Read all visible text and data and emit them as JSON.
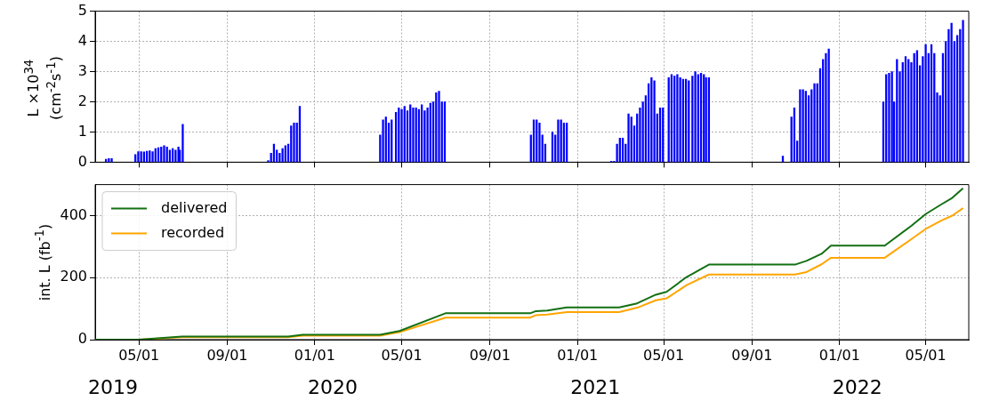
{
  "chart_data": [
    {
      "type": "bar",
      "ylabel": "L ×10$^{34}$\n(cm$^{-2}$s$^{-1}$)",
      "color": "#0000ff",
      "xlim": [
        "2019-03-01",
        "2022-06-30"
      ],
      "ylim": [
        0,
        5
      ],
      "yticks": [
        0,
        1,
        2,
        3,
        4,
        5
      ],
      "grid": true,
      "tick_labels": "y",
      "xticks": [
        {
          "value": "2019-05-01",
          "label": null
        },
        {
          "value": "2019-09-01",
          "label": null
        },
        {
          "value": "2020-01-01",
          "label": null
        },
        {
          "value": "2020-05-01",
          "label": null
        },
        {
          "value": "2020-09-01",
          "label": null
        },
        {
          "value": "2021-01-01",
          "label": null
        },
        {
          "value": "2021-05-01",
          "label": null
        },
        {
          "value": "2021-09-01",
          "label": null
        },
        {
          "value": "2022-01-01",
          "label": null
        },
        {
          "value": "2022-05-01",
          "label": null
        }
      ],
      "x": [
        "2019-03-16",
        "2019-03-20",
        "2019-03-24",
        "2019-04-26",
        "2019-04-30",
        "2019-05-04",
        "2019-05-08",
        "2019-05-12",
        "2019-05-16",
        "2019-05-20",
        "2019-05-24",
        "2019-05-28",
        "2019-06-01",
        "2019-06-05",
        "2019-06-09",
        "2019-06-13",
        "2019-06-17",
        "2019-06-21",
        "2019-06-25",
        "2019-06-27",
        "2019-07-01",
        "2019-10-28",
        "2019-11-01",
        "2019-11-05",
        "2019-11-09",
        "2019-11-13",
        "2019-11-17",
        "2019-11-21",
        "2019-11-25",
        "2019-11-29",
        "2019-12-03",
        "2019-12-07",
        "2019-12-11",
        "2020-04-01",
        "2020-04-05",
        "2020-04-09",
        "2020-04-13",
        "2020-04-17",
        "2020-04-23",
        "2020-04-27",
        "2020-05-01",
        "2020-05-05",
        "2020-05-09",
        "2020-05-13",
        "2020-05-17",
        "2020-05-21",
        "2020-05-25",
        "2020-05-29",
        "2020-06-02",
        "2020-06-06",
        "2020-06-10",
        "2020-06-14",
        "2020-06-18",
        "2020-06-22",
        "2020-06-26",
        "2020-06-30",
        "2020-10-28",
        "2020-11-01",
        "2020-11-05",
        "2020-11-09",
        "2020-11-13",
        "2020-11-17",
        "2020-11-27",
        "2020-12-01",
        "2020-12-05",
        "2020-12-09",
        "2020-12-13",
        "2020-12-17",
        "2021-02-17",
        "2021-02-21",
        "2021-02-25",
        "2021-03-01",
        "2021-03-05",
        "2021-03-09",
        "2021-03-13",
        "2021-03-17",
        "2021-03-21",
        "2021-03-25",
        "2021-03-29",
        "2021-04-02",
        "2021-04-06",
        "2021-04-10",
        "2021-04-14",
        "2021-04-18",
        "2021-04-22",
        "2021-04-26",
        "2021-04-30",
        "2021-05-08",
        "2021-05-12",
        "2021-05-16",
        "2021-05-20",
        "2021-05-24",
        "2021-05-28",
        "2021-06-01",
        "2021-06-05",
        "2021-06-10",
        "2021-06-14",
        "2021-06-18",
        "2021-06-22",
        "2021-06-26",
        "2021-06-29",
        "2021-07-03",
        "2021-10-14",
        "2021-10-26",
        "2021-10-30",
        "2021-11-03",
        "2021-11-07",
        "2021-11-11",
        "2021-11-15",
        "2021-11-19",
        "2021-11-23",
        "2021-11-27",
        "2021-12-01",
        "2021-12-05",
        "2021-12-09",
        "2021-12-13",
        "2021-12-17",
        "2022-03-03",
        "2022-03-07",
        "2022-03-11",
        "2022-03-15",
        "2022-03-18",
        "2022-03-22",
        "2022-03-26",
        "2022-03-30",
        "2022-04-03",
        "2022-04-07",
        "2022-04-11",
        "2022-04-15",
        "2022-04-19",
        "2022-04-23",
        "2022-04-27",
        "2022-05-01",
        "2022-05-05",
        "2022-05-09",
        "2022-05-13",
        "2022-05-17",
        "2022-05-21",
        "2022-05-25",
        "2022-05-29",
        "2022-06-02",
        "2022-06-06",
        "2022-06-10",
        "2022-06-14",
        "2022-06-18",
        "2022-06-22"
      ],
      "values": [
        0.1,
        0.12,
        0.12,
        0.25,
        0.35,
        0.35,
        0.34,
        0.36,
        0.38,
        0.35,
        0.45,
        0.48,
        0.5,
        0.55,
        0.5,
        0.4,
        0.45,
        0.4,
        0.5,
        0.4,
        1.25,
        0.05,
        0.3,
        0.6,
        0.4,
        0.3,
        0.45,
        0.55,
        0.6,
        1.2,
        1.3,
        1.3,
        1.85,
        0.9,
        1.4,
        1.5,
        1.3,
        1.4,
        1.65,
        1.8,
        1.75,
        1.85,
        1.7,
        1.9,
        1.8,
        1.8,
        1.75,
        1.9,
        1.7,
        1.8,
        1.95,
        2.0,
        2.3,
        2.35,
        2.0,
        2.0,
        0.9,
        1.4,
        1.4,
        1.3,
        0.9,
        0.6,
        1.0,
        0.9,
        1.4,
        1.4,
        1.3,
        1.3,
        0.03,
        0.03,
        0.6,
        0.8,
        0.8,
        0.6,
        1.6,
        1.5,
        1.2,
        1.6,
        1.8,
        2.0,
        2.2,
        2.6,
        2.8,
        2.7,
        1.6,
        1.8,
        1.8,
        2.8,
        2.9,
        2.85,
        2.9,
        2.8,
        2.75,
        2.75,
        2.7,
        2.85,
        3.0,
        2.9,
        2.95,
        2.9,
        2.8,
        2.8,
        0.2,
        1.5,
        1.8,
        0.7,
        2.4,
        2.4,
        2.35,
        2.2,
        2.4,
        2.6,
        2.6,
        3.1,
        3.4,
        3.6,
        3.75,
        2.0,
        2.9,
        2.95,
        3.0,
        2.0,
        3.4,
        3.0,
        3.3,
        3.5,
        3.4,
        3.3,
        3.6,
        3.7,
        3.2,
        3.5,
        3.9,
        3.6,
        3.9,
        3.6,
        2.3,
        2.2,
        3.6,
        4.0,
        4.4,
        4.6,
        4.0,
        4.2,
        4.4,
        4.7
      ]
    },
    {
      "type": "line",
      "ylabel": "int. L (fb$^{-1}$)",
      "xlim": [
        "2019-03-01",
        "2022-06-30"
      ],
      "ylim": [
        0,
        500
      ],
      "yticks": [
        0,
        200,
        400
      ],
      "grid": true,
      "legend": "top left",
      "xticks": [
        {
          "value": "2019-05-01",
          "label": "05/01"
        },
        {
          "value": "2019-09-01",
          "label": "09/01"
        },
        {
          "value": "2020-01-01",
          "label": "01/01"
        },
        {
          "value": "2020-05-01",
          "label": "05/01"
        },
        {
          "value": "2020-09-01",
          "label": "09/01"
        },
        {
          "value": "2021-01-01",
          "label": "01/01"
        },
        {
          "value": "2021-05-01",
          "label": "05/01"
        },
        {
          "value": "2021-09-01",
          "label": "09/01"
        },
        {
          "value": "2022-01-01",
          "label": "01/01"
        },
        {
          "value": "2022-05-01",
          "label": "05/01"
        }
      ],
      "annotations": [
        "2019",
        "2020",
        "2021",
        "2022"
      ],
      "x": [
        "2019-03-01",
        "2019-05-01",
        "2019-06-30",
        "2019-11-25",
        "2019-12-15",
        "2020-04-01",
        "2020-04-28",
        "2020-07-01",
        "2020-10-27",
        "2020-11-04",
        "2020-11-20",
        "2020-12-17",
        "2021-02-28",
        "2021-03-25",
        "2021-04-20",
        "2021-05-05",
        "2021-06-02",
        "2021-07-03",
        "2021-10-31",
        "2021-11-16",
        "2021-12-07",
        "2021-12-20",
        "2022-03-05",
        "2022-04-11",
        "2022-05-01",
        "2022-05-22",
        "2022-06-07",
        "2022-06-22"
      ],
      "series": [
        {
          "name": "delivered",
          "color": "#137013",
          "values": [
            0,
            0,
            10,
            10,
            16,
            16,
            28,
            85,
            85,
            92,
            94,
            104,
            104,
            117,
            145,
            154,
            202,
            242,
            242,
            254,
            277,
            303,
            303,
            367,
            405,
            435,
            457,
            488
          ]
        },
        {
          "name": "recorded",
          "color": "#ffa500",
          "values": [
            0,
            0,
            8,
            8,
            13,
            13,
            24,
            71,
            71,
            79,
            81,
            89,
            89,
            103,
            127,
            133,
            176,
            210,
            210,
            218,
            243,
            264,
            264,
            324,
            357,
            383,
            400,
            424
          ]
        }
      ]
    }
  ]
}
